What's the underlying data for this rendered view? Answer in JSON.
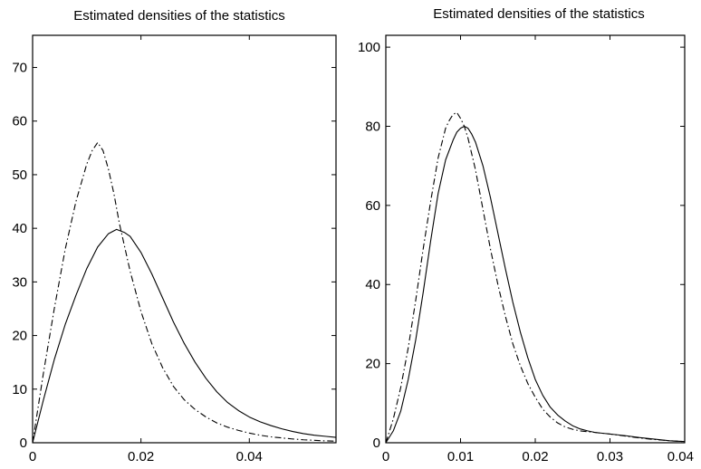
{
  "chart_data": [
    {
      "type": "line",
      "title": "Estimated densities of the statistics",
      "xlabel": "",
      "ylabel": "",
      "xlim": [
        0,
        0.056
      ],
      "ylim": [
        0,
        76
      ],
      "xticks": [
        0,
        0.02,
        0.04
      ],
      "xtick_labels": [
        "0",
        "0.02",
        "0.04"
      ],
      "yticks": [
        0,
        10,
        20,
        30,
        40,
        50,
        60,
        70
      ],
      "ytick_labels": [
        "0",
        "10",
        "20",
        "30",
        "40",
        "50",
        "60",
        "70"
      ],
      "grid": false,
      "legend": "none",
      "series": [
        {
          "style": "solid",
          "color": "#000000",
          "x": [
            0,
            0.002,
            0.004,
            0.006,
            0.008,
            0.01,
            0.012,
            0.014,
            0.0155,
            0.017,
            0.018,
            0.02,
            0.022,
            0.024,
            0.026,
            0.028,
            0.03,
            0.032,
            0.034,
            0.036,
            0.038,
            0.04,
            0.042,
            0.044,
            0.046,
            0.048,
            0.05,
            0.052,
            0.054,
            0.056
          ],
          "y": [
            0,
            8,
            15.5,
            22,
            27.5,
            32.5,
            36.5,
            39,
            39.8,
            39.2,
            38.5,
            35.5,
            31.5,
            27,
            22.5,
            18.5,
            15,
            12,
            9.5,
            7.5,
            6,
            4.8,
            3.9,
            3.2,
            2.6,
            2.1,
            1.7,
            1.4,
            1.2,
            1.0
          ]
        },
        {
          "style": "dashdot",
          "color": "#000000",
          "x": [
            0,
            0.002,
            0.004,
            0.006,
            0.008,
            0.01,
            0.011,
            0.012,
            0.013,
            0.014,
            0.015,
            0.016,
            0.018,
            0.02,
            0.022,
            0.024,
            0.026,
            0.028,
            0.03,
            0.032,
            0.034,
            0.036,
            0.038,
            0.04,
            0.042,
            0.044,
            0.046,
            0.048,
            0.05,
            0.052,
            0.054,
            0.056
          ],
          "y": [
            0,
            13,
            25,
            36,
            45,
            52,
            54.5,
            56,
            54.5,
            51,
            46.5,
            41,
            32,
            24.5,
            18.5,
            14,
            10.5,
            8,
            6.2,
            4.8,
            3.7,
            2.9,
            2.3,
            1.8,
            1.4,
            1.1,
            0.9,
            0.7,
            0.55,
            0.45,
            0.35,
            0.3
          ]
        }
      ]
    },
    {
      "type": "line",
      "title": "Estimated densities of the statistics",
      "xlabel": "",
      "ylabel": "",
      "xlim": [
        0,
        0.04
      ],
      "ylim": [
        0,
        103
      ],
      "xticks": [
        0,
        0.01,
        0.02,
        0.03,
        0.04
      ],
      "xtick_labels": [
        "0",
        "0.01",
        "0.02",
        "0.03",
        "0.04"
      ],
      "yticks": [
        0,
        20,
        40,
        60,
        80,
        100
      ],
      "ytick_labels": [
        "0",
        "20",
        "40",
        "60",
        "80",
        "100"
      ],
      "grid": false,
      "legend": "none",
      "series": [
        {
          "style": "solid",
          "color": "#000000",
          "x": [
            0,
            0.001,
            0.002,
            0.003,
            0.004,
            0.005,
            0.006,
            0.007,
            0.008,
            0.009,
            0.0095,
            0.01,
            0.0105,
            0.011,
            0.0115,
            0.012,
            0.013,
            0.014,
            0.015,
            0.016,
            0.017,
            0.018,
            0.019,
            0.02,
            0.021,
            0.022,
            0.023,
            0.024,
            0.025,
            0.026,
            0.027,
            0.028,
            0.029,
            0.03,
            0.032,
            0.034,
            0.036,
            0.038,
            0.04
          ],
          "y": [
            0,
            3,
            8,
            16,
            26,
            38,
            51,
            63,
            71.5,
            76.5,
            78.5,
            79.5,
            80,
            79.5,
            78,
            76,
            70,
            62,
            53,
            44,
            35.5,
            28,
            21.5,
            16,
            12,
            9,
            7,
            5.5,
            4.3,
            3.5,
            3,
            2.6,
            2.4,
            2.2,
            1.8,
            1.3,
            0.9,
            0.5,
            0.3
          ]
        },
        {
          "style": "dashdot",
          "color": "#000000",
          "x": [
            0,
            0.001,
            0.002,
            0.003,
            0.004,
            0.005,
            0.006,
            0.007,
            0.008,
            0.0085,
            0.009,
            0.0095,
            0.01,
            0.0105,
            0.011,
            0.012,
            0.013,
            0.014,
            0.015,
            0.016,
            0.017,
            0.018,
            0.019,
            0.02,
            0.021,
            0.022,
            0.023,
            0.024,
            0.025,
            0.026,
            0.027,
            0.028,
            0.029,
            0.03,
            0.032,
            0.034,
            0.036,
            0.038,
            0.04
          ],
          "y": [
            0,
            6,
            14,
            24,
            36,
            49,
            61,
            72,
            79.5,
            81.5,
            83,
            83.5,
            82,
            80,
            77,
            69,
            59,
            49,
            40,
            32,
            25,
            19.5,
            15,
            11.5,
            8.5,
            6.5,
            5,
            4,
            3.4,
            3,
            2.8,
            2.6,
            2.4,
            2.2,
            1.7,
            1.2,
            0.8,
            0.5,
            0.3
          ]
        }
      ]
    }
  ]
}
